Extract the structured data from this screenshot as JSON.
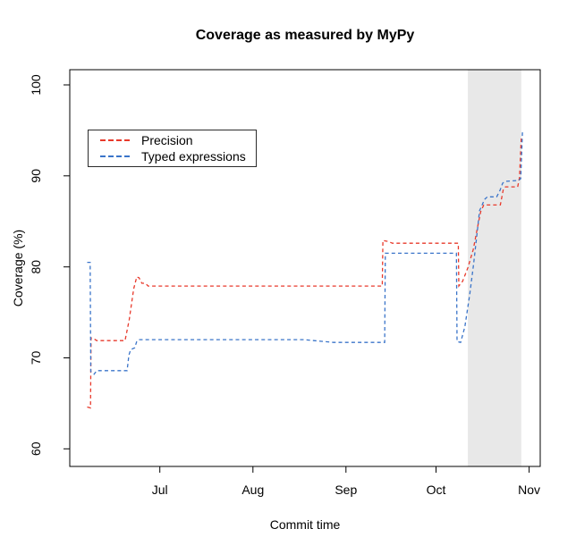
{
  "chart_data": {
    "type": "line",
    "title": "Coverage as measured by MyPy",
    "xlabel": "Commit time",
    "ylabel": "Coverage (%)",
    "x_axis": {
      "unit": "days_since_jun_1",
      "range_days": [
        0,
        156.7
      ],
      "ticks": [
        {
          "day": 30,
          "label": "Jul"
        },
        {
          "day": 61,
          "label": "Aug"
        },
        {
          "day": 92,
          "label": "Sep"
        },
        {
          "day": 122,
          "label": "Oct"
        },
        {
          "day": 153,
          "label": "Nov"
        }
      ]
    },
    "y_axis": {
      "range": [
        58.07,
        101.67
      ],
      "ticks": [
        60,
        70,
        80,
        90,
        100
      ]
    },
    "grid": false,
    "legend": {
      "position": "top-left",
      "items": [
        "Precision",
        "Typed expressions"
      ]
    },
    "shaded_region": {
      "from_day": 132.6,
      "to_day": 150.4,
      "from_date": "Oct 11",
      "to_date": "Oct 28",
      "color": "#e8e8e8"
    },
    "series": [
      {
        "name": "Precision",
        "color": "#e8392b",
        "line_style": "dashed",
        "points": [
          [
            5.8,
            64.6
          ],
          [
            6.9,
            64.5
          ],
          [
            7.1,
            72.2
          ],
          [
            8.0,
            72.1
          ],
          [
            9.0,
            71.9
          ],
          [
            18.4,
            71.9
          ],
          [
            19.8,
            74.2
          ],
          [
            21.3,
            77.6
          ],
          [
            22.3,
            78.9
          ],
          [
            23.1,
            78.8
          ],
          [
            24.0,
            78.2
          ],
          [
            25.2,
            78.2
          ],
          [
            26.1,
            77.9
          ],
          [
            104.1,
            77.9
          ],
          [
            104.3,
            82.9
          ],
          [
            106.0,
            82.8
          ],
          [
            107.5,
            82.6
          ],
          [
            129.4,
            82.6
          ],
          [
            129.6,
            77.9
          ],
          [
            130.8,
            78.4
          ],
          [
            132.6,
            79.9
          ],
          [
            134.4,
            81.9
          ],
          [
            135.9,
            84.5
          ],
          [
            136.9,
            86.1
          ],
          [
            137.9,
            86.8
          ],
          [
            143.4,
            86.8
          ],
          [
            144.4,
            88.5
          ],
          [
            145.1,
            88.8
          ],
          [
            149.2,
            88.8
          ],
          [
            149.8,
            89.8
          ],
          [
            150.4,
            94.4
          ]
        ]
      },
      {
        "name": "Typed expressions",
        "color": "#3a74c9",
        "line_style": "dashed",
        "points": [
          [
            5.8,
            80.5
          ],
          [
            6.8,
            80.5
          ],
          [
            7.0,
            68.5
          ],
          [
            8.1,
            68.2
          ],
          [
            9.0,
            68.6
          ],
          [
            19.1,
            68.6
          ],
          [
            19.7,
            70.3
          ],
          [
            20.3,
            70.9
          ],
          [
            21.6,
            71.1
          ],
          [
            22.3,
            71.8
          ],
          [
            23.0,
            72.0
          ],
          [
            78.0,
            72.0
          ],
          [
            87.8,
            71.7
          ],
          [
            104.9,
            71.7
          ],
          [
            105.1,
            81.5
          ],
          [
            107.0,
            81.5
          ],
          [
            128.8,
            81.5
          ],
          [
            129.0,
            71.8
          ],
          [
            130.2,
            71.7
          ],
          [
            131.6,
            73.4
          ],
          [
            133.2,
            76.9
          ],
          [
            134.5,
            80.3
          ],
          [
            135.7,
            83.8
          ],
          [
            136.5,
            86.2
          ],
          [
            137.1,
            86.6
          ],
          [
            138.1,
            87.4
          ],
          [
            139.1,
            87.7
          ],
          [
            142.2,
            87.7
          ],
          [
            143.3,
            88.4
          ],
          [
            144.2,
            89.2
          ],
          [
            145.0,
            89.4
          ],
          [
            149.5,
            89.5
          ],
          [
            150.2,
            89.7
          ],
          [
            150.8,
            95.0
          ]
        ]
      }
    ]
  }
}
